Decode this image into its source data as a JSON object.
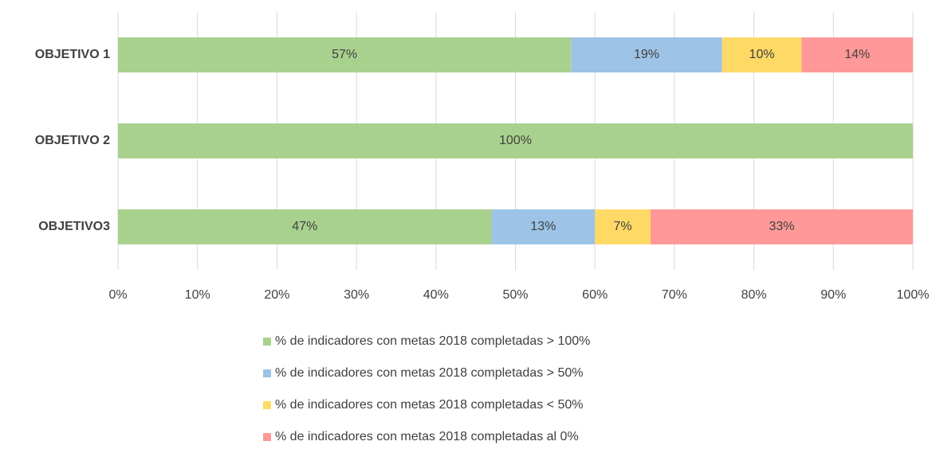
{
  "chart_data": {
    "type": "stacked_bar_horizontal",
    "categories": [
      "OBJETIVO 1",
      "OBJETIVO 2",
      "OBJETIVO3"
    ],
    "series": [
      {
        "name": "% de indicadores con metas 2018 completadas > 100%",
        "color": "#a9d18e",
        "values": [
          57,
          100,
          47
        ],
        "value_labels": [
          "57%",
          "100%",
          "47%"
        ]
      },
      {
        "name": "% de indicadores con metas 2018 completadas > 50%",
        "color": "#9dc3e6",
        "values": [
          19,
          0,
          13
        ],
        "value_labels": [
          "19%",
          null,
          "13%"
        ]
      },
      {
        "name": "% de indicadores con metas 2018 completadas < 50%",
        "color": "#ffd966",
        "values": [
          10,
          0,
          7
        ],
        "value_labels": [
          "10%",
          null,
          "7%"
        ]
      },
      {
        "name": "% de indicadores con metas 2018 completadas al 0%",
        "color": "#ff9999",
        "values": [
          14,
          0,
          33
        ],
        "value_labels": [
          "14%",
          null,
          "33%"
        ]
      }
    ],
    "xlim": [
      0,
      100
    ],
    "xticks": [
      {
        "value": 0,
        "label": "0%"
      },
      {
        "value": 10,
        "label": "10%"
      },
      {
        "value": 20,
        "label": "20%"
      },
      {
        "value": 30,
        "label": "30%"
      },
      {
        "value": 40,
        "label": "40%"
      },
      {
        "value": 50,
        "label": "50%"
      },
      {
        "value": 60,
        "label": "60%"
      },
      {
        "value": 70,
        "label": "70%"
      },
      {
        "value": 80,
        "label": "80%"
      },
      {
        "value": 90,
        "label": "90%"
      },
      {
        "value": 100,
        "label": "100%"
      }
    ],
    "grid": true,
    "legend": "bottom"
  }
}
